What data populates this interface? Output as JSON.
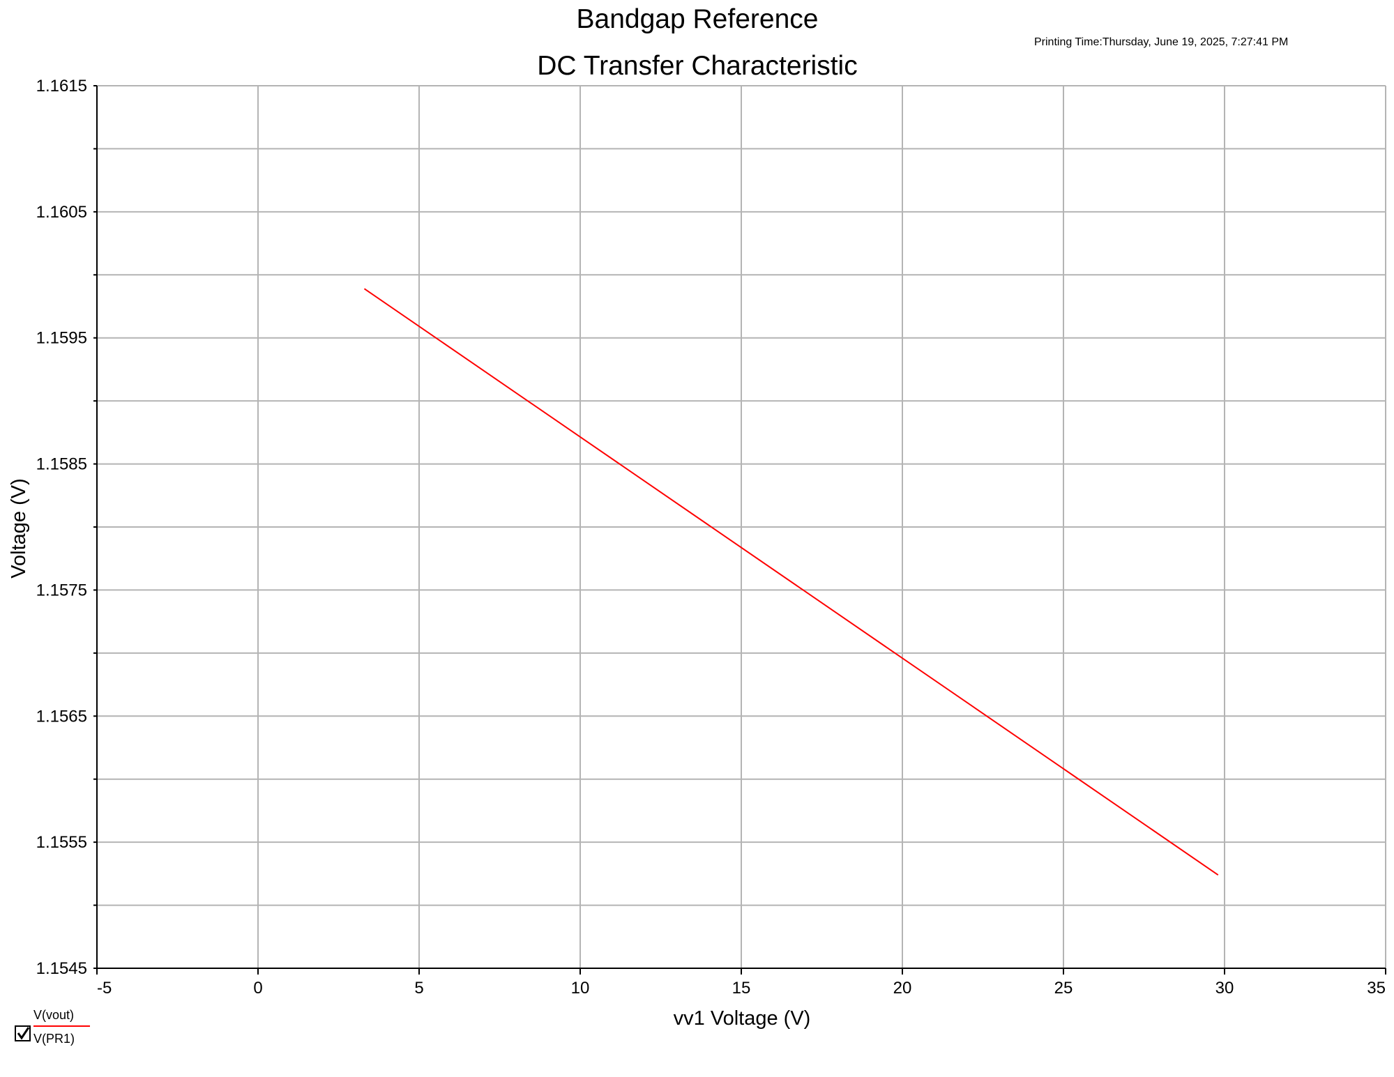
{
  "print_time": "Printing Time:Thursday, June 19, 2025, 7:27:41 PM",
  "legend": {
    "checked": true,
    "items": [
      "V(vout)",
      "V(PR1)"
    ]
  },
  "chart_data": {
    "type": "line",
    "title": [
      "Bandgap Reference",
      "DC Transfer Characteristic"
    ],
    "xlabel": "vv1 Voltage (V)",
    "ylabel": "Voltage (V)",
    "xlim": [
      -5,
      35
    ],
    "ylim": [
      1.1545,
      1.1615
    ],
    "x_ticks": [
      "-5",
      "0",
      "5",
      "10",
      "15",
      "20",
      "25",
      "30",
      "35"
    ],
    "y_ticks": [
      "1.1545",
      "1.1555",
      "1.1565",
      "1.1575",
      "1.1585",
      "1.1595",
      "1.1605",
      "1.1615"
    ],
    "grid": true,
    "series": [
      {
        "name": "V(vout)",
        "color": "#ff0000",
        "x": [
          3.3,
          29.8
        ],
        "y": [
          1.15989,
          1.15524
        ]
      }
    ]
  }
}
